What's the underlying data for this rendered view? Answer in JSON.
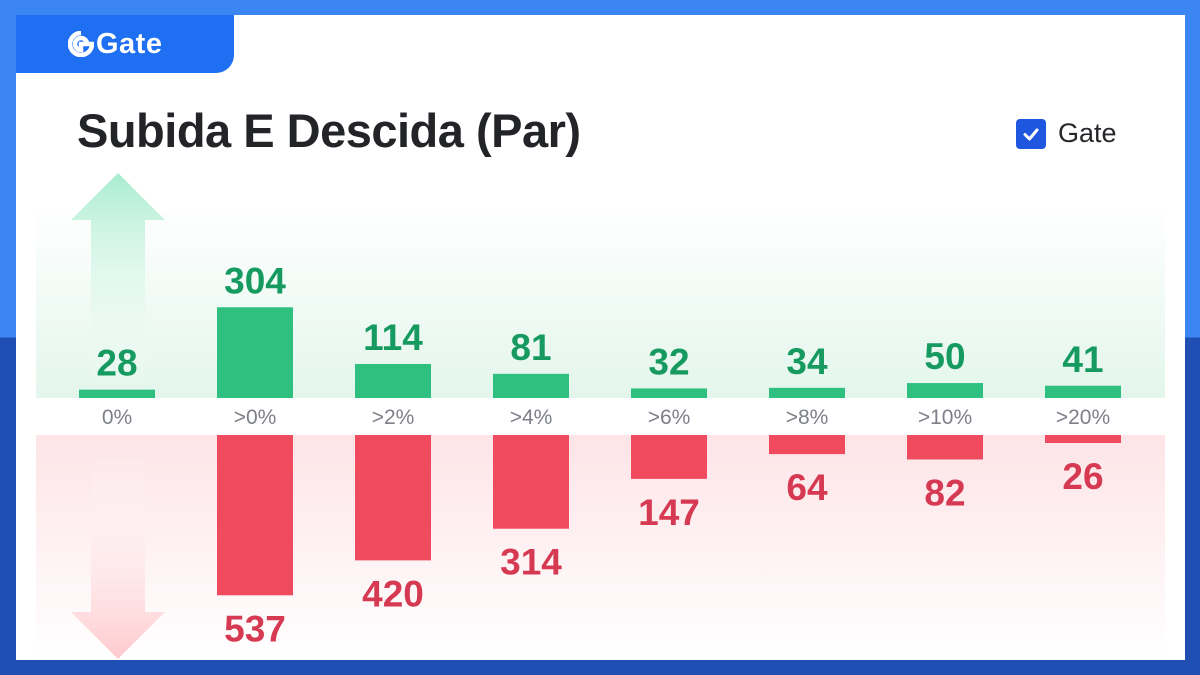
{
  "brand": {
    "name": "Gate"
  },
  "colors": {
    "up": "#2fbf7f",
    "down": "#f04a5e",
    "up_text": "#169a60",
    "down_text": "#d63a52",
    "brand": "#1e6ff2"
  },
  "chart_data": {
    "type": "bar",
    "title": "Subida E Descida (Par)",
    "legend": [
      {
        "label": "Gate",
        "checked": true,
        "color": "#1e56e0"
      }
    ],
    "legend_position": "top-right",
    "categories": [
      "0%",
      ">0%",
      ">2%",
      ">4%",
      ">6%",
      ">8%",
      ">10%",
      ">20%"
    ],
    "series": [
      {
        "values": [
          28,
          304,
          114,
          81,
          32,
          34,
          50,
          41
        ],
        "color": "#2fbf7f"
      },
      {
        "values": [
          0,
          537,
          420,
          314,
          147,
          64,
          82,
          26
        ],
        "color": "#f04a5e"
      }
    ],
    "grid": false
  }
}
